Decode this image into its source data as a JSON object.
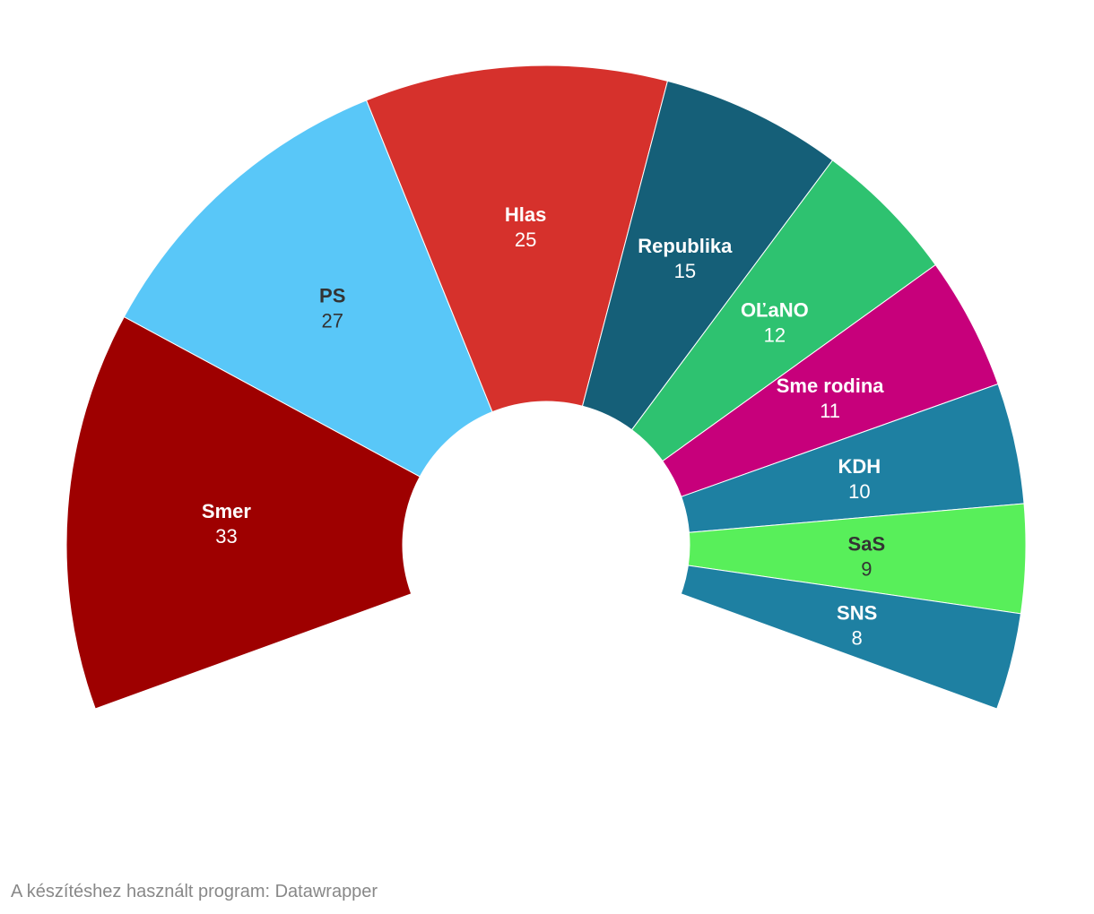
{
  "chart_data": {
    "type": "pie",
    "variant": "half-donut-parliament",
    "title": "",
    "total_seats": 150,
    "segments": [
      {
        "name": "Smer",
        "value": 33,
        "color": "#9e0000",
        "label_color": "#ffffff"
      },
      {
        "name": "PS",
        "value": 27,
        "color": "#59c7f8",
        "label_color": "#333333"
      },
      {
        "name": "Hlas",
        "value": 25,
        "color": "#d6312c",
        "label_color": "#ffffff"
      },
      {
        "name": "Republika",
        "value": 15,
        "color": "#155f78",
        "label_color": "#ffffff"
      },
      {
        "name": "OĽaNO",
        "value": 12,
        "color": "#2ec270",
        "label_color": "#ffffff"
      },
      {
        "name": "Sme rodina",
        "value": 11,
        "color": "#c7007b",
        "label_color": "#ffffff"
      },
      {
        "name": "KDH",
        "value": 10,
        "color": "#1e80a2",
        "label_color": "#ffffff"
      },
      {
        "name": "SaS",
        "value": 9,
        "color": "#58ef5a",
        "label_color": "#333333"
      },
      {
        "name": "SNS",
        "value": 8,
        "color": "#1e80a2",
        "label_color": "#ffffff"
      }
    ]
  },
  "footer": {
    "credit": "A készítéshez használt program: Datawrapper"
  }
}
